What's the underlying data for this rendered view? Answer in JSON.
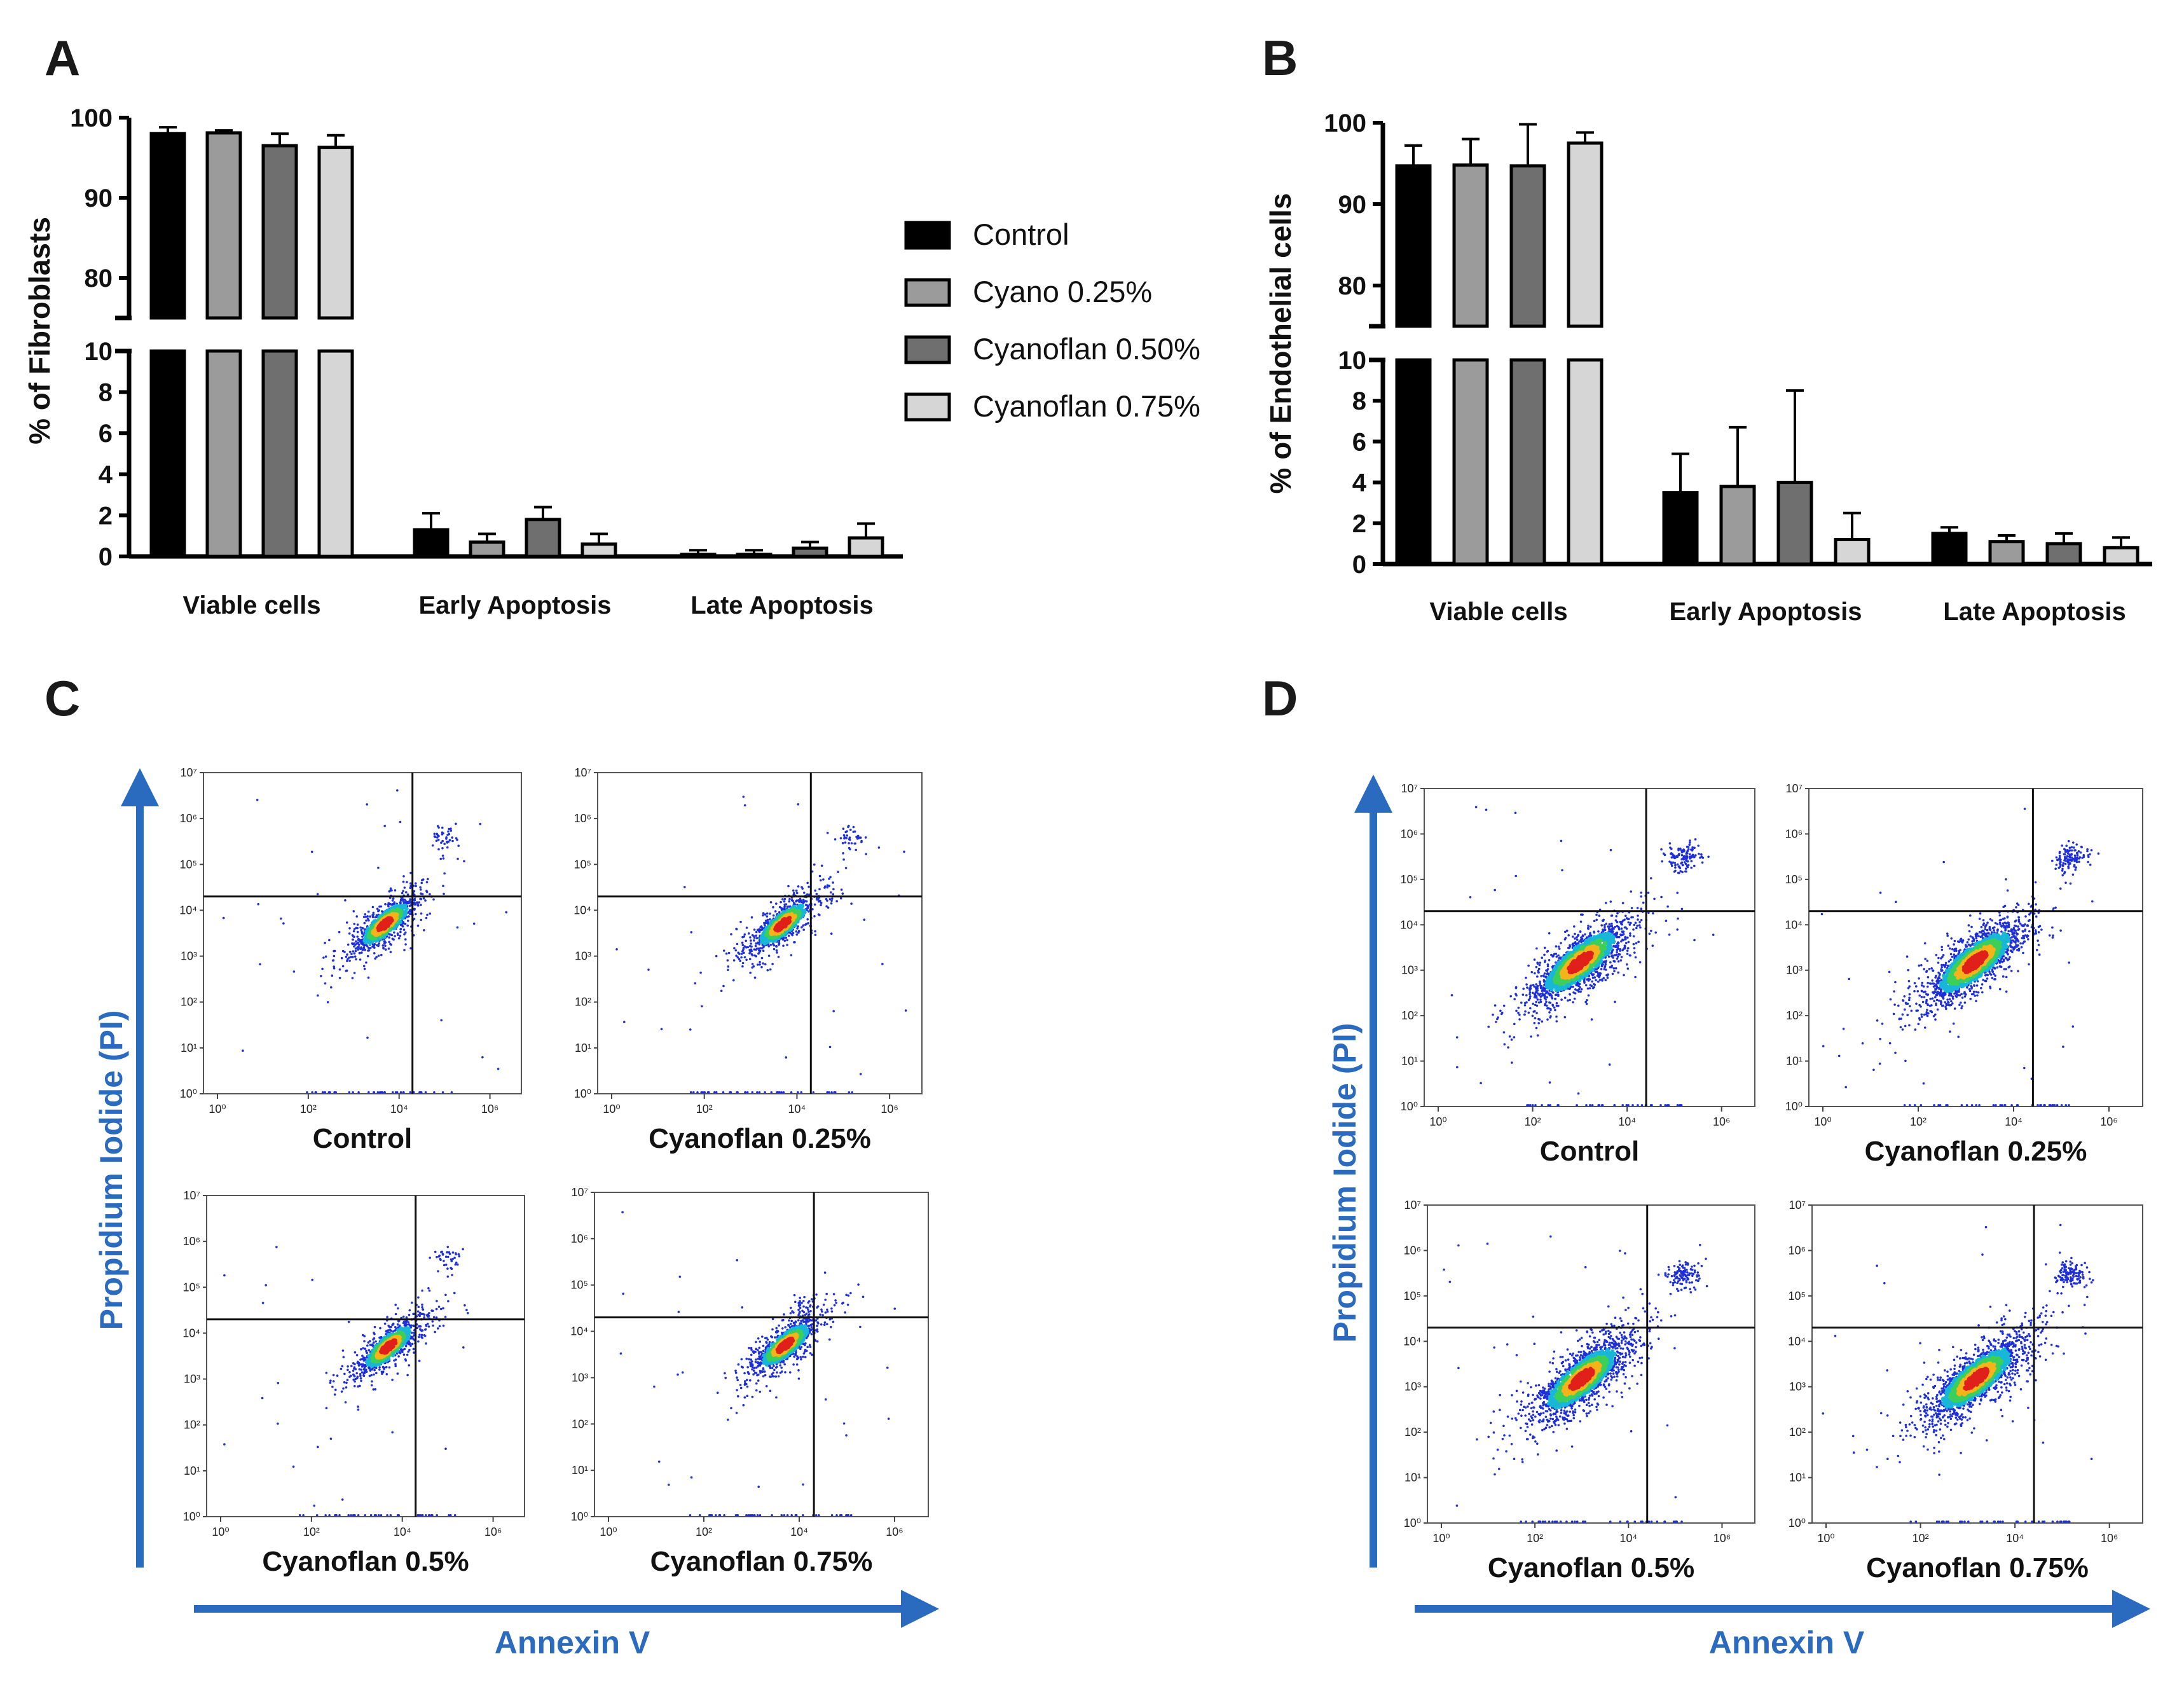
{
  "panels": {
    "A": {
      "letter": "A",
      "caption_xlabel": "",
      "ylabel": "% of Fibroblasts"
    },
    "B": {
      "letter": "B",
      "ylabel": "% of Endothelial cells"
    },
    "C": {
      "letter": "C",
      "ylabel": "Propidium Iodide (PI)",
      "xlabel": "Annexin V",
      "captions": [
        "Control",
        "Cyanoflan 0.25%",
        "Cyanoflan 0.5%",
        "Cyanoflan 0.75%"
      ]
    },
    "D": {
      "letter": "D",
      "ylabel": "Propidium Iodide (PI)",
      "xlabel": "Annexin V",
      "captions": [
        "Control",
        "Cyanoflan 0.25%",
        "Cyanoflan 0.5%",
        "Cyanoflan 0.75%"
      ]
    }
  },
  "legend": {
    "items": [
      {
        "label": "Control",
        "color": "#000000"
      },
      {
        "label": "Cyano 0.25%",
        "color": "#9b9b9b"
      },
      {
        "label": "Cyanoflan 0.50%",
        "color": "#6f6f6f"
      },
      {
        "label": "Cyanoflan 0.75%",
        "color": "#d6d6d6"
      }
    ]
  },
  "flow_axis_ticks": {
    "y": [
      "10⁰",
      "10¹",
      "10²",
      "10³",
      "10⁴",
      "10⁵",
      "10⁶",
      "10⁷"
    ],
    "x": [
      "10⁰",
      "10²",
      "10⁴",
      "10⁶"
    ]
  },
  "chart_data": [
    {
      "type": "bar",
      "panel": "A",
      "ylabel": "% of Fibroblasts",
      "categories": [
        "Viable cells",
        "Early Apoptosis",
        "Late Apoptosis"
      ],
      "broken_axis": {
        "lower": [
          0,
          10
        ],
        "upper": [
          75,
          100
        ]
      },
      "y_ticks_lower": [
        0,
        2,
        4,
        6,
        8,
        10
      ],
      "y_ticks_upper": [
        80,
        90,
        100
      ],
      "series": [
        {
          "name": "Control",
          "values": [
            98.0,
            1.3,
            0.1
          ],
          "errors": [
            0.8,
            0.8,
            0.2
          ]
        },
        {
          "name": "Cyano 0.25%",
          "values": [
            98.1,
            0.7,
            0.1
          ],
          "errors": [
            0.3,
            0.4,
            0.2
          ]
        },
        {
          "name": "Cyanoflan 0.50%",
          "values": [
            96.5,
            1.8,
            0.4
          ],
          "errors": [
            1.5,
            0.6,
            0.3
          ]
        },
        {
          "name": "Cyanoflan 0.75%",
          "values": [
            96.3,
            0.6,
            0.9
          ],
          "errors": [
            1.5,
            0.5,
            0.7
          ]
        }
      ]
    },
    {
      "type": "bar",
      "panel": "B",
      "ylabel": "% of Endothelial cells",
      "categories": [
        "Viable cells",
        "Early Apoptosis",
        "Late Apoptosis"
      ],
      "broken_axis": {
        "lower": [
          0,
          10
        ],
        "upper": [
          75,
          100
        ]
      },
      "y_ticks_lower": [
        0,
        2,
        4,
        6,
        8,
        10
      ],
      "y_ticks_upper": [
        80,
        90,
        100
      ],
      "series": [
        {
          "name": "Control",
          "values": [
            94.7,
            3.5,
            1.5
          ],
          "errors": [
            2.5,
            1.9,
            0.3
          ]
        },
        {
          "name": "Cyano 0.25%",
          "values": [
            94.8,
            3.8,
            1.1
          ],
          "errors": [
            3.2,
            2.9,
            0.3
          ]
        },
        {
          "name": "Cyanoflan 0.50%",
          "values": [
            94.7,
            4.0,
            1.0
          ],
          "errors": [
            5.1,
            4.5,
            0.5
          ]
        },
        {
          "name": "Cyanoflan 0.75%",
          "values": [
            97.5,
            1.2,
            0.8
          ],
          "errors": [
            1.3,
            1.3,
            0.5
          ]
        }
      ]
    },
    {
      "type": "scatter",
      "panel": "C",
      "xlabel": "Annexin V",
      "ylabel": "Propidium Iodide (PI)",
      "log_scale": true,
      "xlim": [
        1,
        10000000
      ],
      "ylim": [
        1,
        10000000
      ],
      "quadrant_gate": {
        "x": 40000,
        "y": 20000
      },
      "plots": [
        {
          "name": "Control",
          "population_center": [
            10000,
            5000
          ],
          "late_cluster": [
            200000,
            400000
          ]
        },
        {
          "name": "Cyanoflan 0.25%",
          "population_center": [
            10000,
            5000
          ],
          "late_cluster": [
            300000,
            400000
          ]
        },
        {
          "name": "Cyanoflan 0.5%",
          "population_center": [
            10000,
            5000
          ],
          "late_cluster": [
            200000,
            400000
          ]
        },
        {
          "name": "Cyanoflan 0.75%",
          "population_center": [
            10000,
            5000
          ],
          "late_cluster": [
            20000,
            30000
          ]
        }
      ]
    },
    {
      "type": "scatter",
      "panel": "D",
      "xlabel": "Annexin V",
      "ylabel": "Propidium Iodide (PI)",
      "log_scale": true,
      "xlim": [
        1,
        10000000
      ],
      "ylim": [
        1,
        10000000
      ],
      "quadrant_gate": {
        "x": 50000,
        "y": 20000
      },
      "plots": [
        {
          "name": "Control",
          "population_center": [
            2000,
            1500
          ],
          "late_cluster": [
            300000,
            300000
          ]
        },
        {
          "name": "Cyanoflan 0.25%",
          "population_center": [
            3000,
            1500
          ],
          "late_cluster": [
            300000,
            300000
          ]
        },
        {
          "name": "Cyanoflan 0.5%",
          "population_center": [
            2000,
            1500
          ],
          "late_cluster": [
            300000,
            300000
          ]
        },
        {
          "name": "Cyanoflan 0.75%",
          "population_center": [
            3000,
            1500
          ],
          "late_cluster": [
            300000,
            300000
          ]
        }
      ]
    }
  ]
}
